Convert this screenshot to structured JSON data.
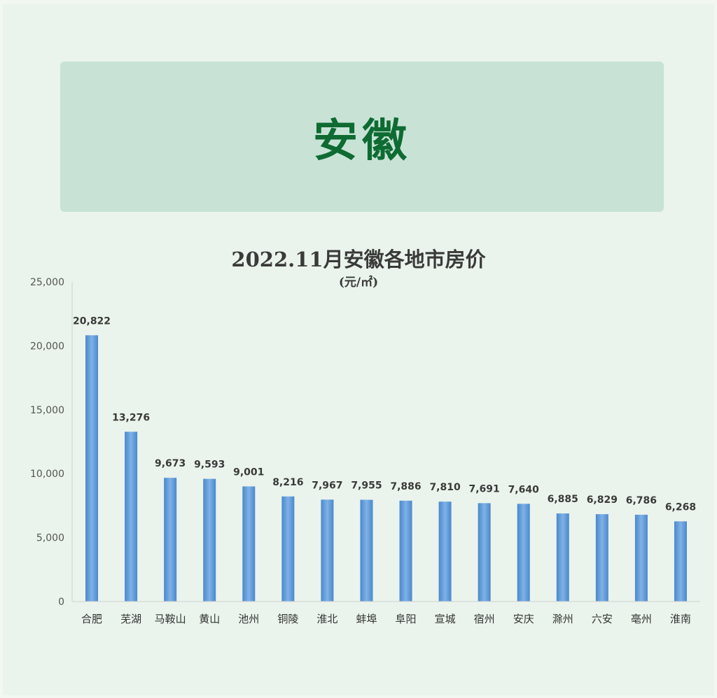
{
  "banner": {
    "title": "安徽"
  },
  "chart_data": {
    "type": "bar",
    "title": "2022.11月安徽各地市房价",
    "subtitle": "(元/㎡)",
    "categories": [
      "合肥",
      "芜湖",
      "马鞍山",
      "黄山",
      "池州",
      "铜陵",
      "淮北",
      "蚌埠",
      "阜阳",
      "宣城",
      "宿州",
      "安庆",
      "滁州",
      "六安",
      "亳州",
      "淮南"
    ],
    "values": [
      20822,
      13276,
      9673,
      9593,
      9001,
      8216,
      7967,
      7955,
      7886,
      7810,
      7691,
      7640,
      6885,
      6829,
      6786,
      6268
    ],
    "data_labels": [
      "20,822",
      "13,276",
      "9,673",
      "9,593",
      "9,001",
      "8,216",
      "7,967",
      "7,955",
      "7,886",
      "7,810",
      "7,691",
      "7,640",
      "6,885",
      "6,829",
      "6,786",
      "6,268"
    ],
    "y_ticks": [
      "0",
      "5,000",
      "10,000",
      "15,000",
      "20,000",
      "25,000"
    ],
    "ylim": [
      0,
      25000
    ],
    "grid": false,
    "legend": "none",
    "bar_color": "#5b9bd5"
  }
}
